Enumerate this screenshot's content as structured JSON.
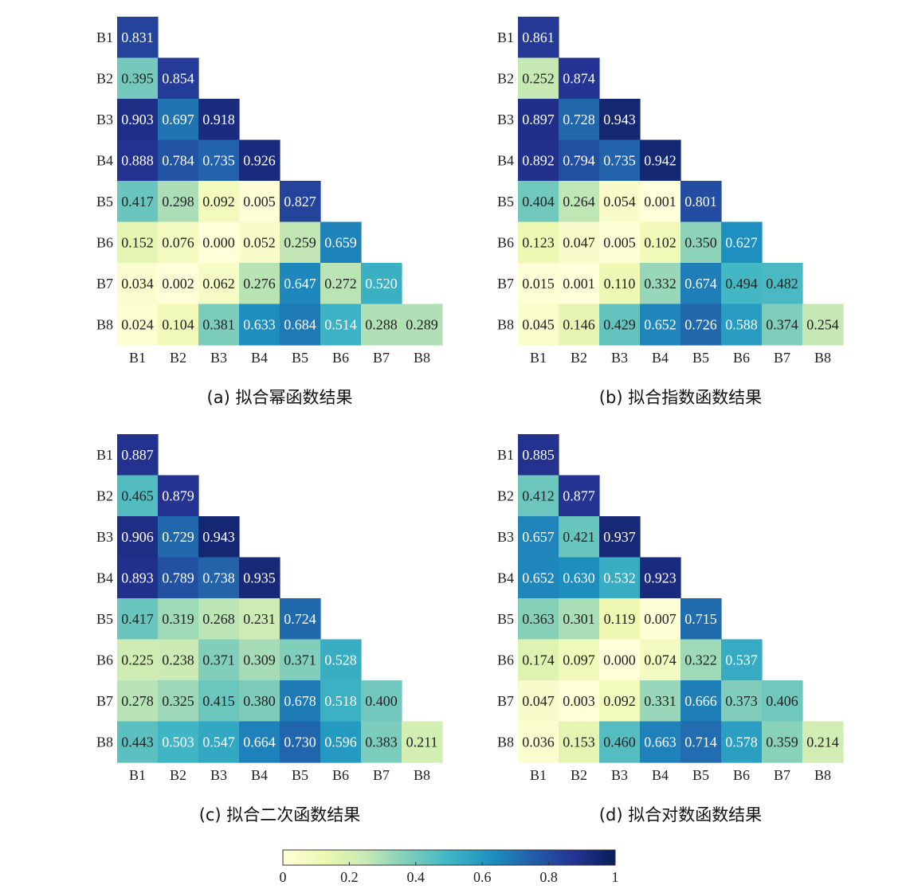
{
  "colors": {
    "colormap": [
      "#ffffd9",
      "#edf8b1",
      "#c7e9b4",
      "#7fcdbb",
      "#41b6c4",
      "#1d91c0",
      "#225ea8",
      "#253494",
      "#081d58"
    ],
    "text_dark": "#222222",
    "text_light": "#ffffff"
  },
  "chart_data": [
    {
      "type": "heatmap",
      "caption": "(a) 拟合幂函数结果",
      "row_labels": [
        "B1",
        "B2",
        "B3",
        "B4",
        "B5",
        "B6",
        "B7",
        "B8"
      ],
      "col_labels": [
        "B1",
        "B2",
        "B3",
        "B4",
        "B5",
        "B6",
        "B7",
        "B8"
      ],
      "values": [
        [
          "0.831"
        ],
        [
          "0.395",
          "0.854"
        ],
        [
          "0.903",
          "0.697",
          "0.918"
        ],
        [
          "0.888",
          "0.784",
          "0.735",
          "0.926"
        ],
        [
          "0.417",
          "0.298",
          "0.092",
          "0.005",
          "0.827"
        ],
        [
          "0.152",
          "0.076",
          "0.000",
          "0.052",
          "0.259",
          "0.659"
        ],
        [
          "0.034",
          "0.002",
          "0.062",
          "0.276",
          "0.647",
          "0.272",
          "0.520"
        ],
        [
          "0.024",
          "0.104",
          "0.381",
          "0.633",
          "0.684",
          "0.514",
          "0.288",
          "0.289"
        ]
      ]
    },
    {
      "type": "heatmap",
      "caption": "(b) 拟合指数函数结果",
      "row_labels": [
        "B1",
        "B2",
        "B3",
        "B4",
        "B5",
        "B6",
        "B7",
        "B8"
      ],
      "col_labels": [
        "B1",
        "B2",
        "B3",
        "B4",
        "B5",
        "B6",
        "B7",
        "B8"
      ],
      "values": [
        [
          "0.861"
        ],
        [
          "0.252",
          "0.874"
        ],
        [
          "0.897",
          "0.728",
          "0.943"
        ],
        [
          "0.892",
          "0.794",
          "0.735",
          "0.942"
        ],
        [
          "0.404",
          "0.264",
          "0.054",
          "0.001",
          "0.801"
        ],
        [
          "0.123",
          "0.047",
          "0.005",
          "0.102",
          "0.350",
          "0.627"
        ],
        [
          "0.015",
          "0.001",
          "0.110",
          "0.332",
          "0.674",
          "0.494",
          "0.482"
        ],
        [
          "0.045",
          "0.146",
          "0.429",
          "0.652",
          "0.726",
          "0.588",
          "0.374",
          "0.254"
        ]
      ]
    },
    {
      "type": "heatmap",
      "caption": "(c) 拟合二次函数结果",
      "row_labels": [
        "B1",
        "B2",
        "B3",
        "B4",
        "B5",
        "B6",
        "B7",
        "B8"
      ],
      "col_labels": [
        "B1",
        "B2",
        "B3",
        "B4",
        "B5",
        "B6",
        "B7",
        "B8"
      ],
      "values": [
        [
          "0.887"
        ],
        [
          "0.465",
          "0.879"
        ],
        [
          "0.906",
          "0.729",
          "0.943"
        ],
        [
          "0.893",
          "0.789",
          "0.738",
          "0.935"
        ],
        [
          "0.417",
          "0.319",
          "0.268",
          "0.231",
          "0.724"
        ],
        [
          "0.225",
          "0.238",
          "0.371",
          "0.309",
          "0.371",
          "0.528"
        ],
        [
          "0.278",
          "0.325",
          "0.415",
          "0.380",
          "0.678",
          "0.518",
          "0.400"
        ],
        [
          "0.443",
          "0.503",
          "0.547",
          "0.664",
          "0.730",
          "0.596",
          "0.383",
          "0.211"
        ]
      ]
    },
    {
      "type": "heatmap",
      "caption": "(d) 拟合对数函数结果",
      "row_labels": [
        "B1",
        "B2",
        "B3",
        "B4",
        "B5",
        "B6",
        "B7",
        "B8"
      ],
      "col_labels": [
        "B1",
        "B2",
        "B3",
        "B4",
        "B5",
        "B6",
        "B7",
        "B8"
      ],
      "values": [
        [
          "0.885"
        ],
        [
          "0.412",
          "0.877"
        ],
        [
          "0.657",
          "0.421",
          "0.937"
        ],
        [
          "0.652",
          "0.630",
          "0.532",
          "0.923"
        ],
        [
          "0.363",
          "0.301",
          "0.119",
          "0.007",
          "0.715"
        ],
        [
          "0.174",
          "0.097",
          "0.000",
          "0.074",
          "0.322",
          "0.537"
        ],
        [
          "0.047",
          "0.003",
          "0.092",
          "0.331",
          "0.666",
          "0.373",
          "0.406"
        ],
        [
          "0.036",
          "0.153",
          "0.460",
          "0.663",
          "0.714",
          "0.578",
          "0.359",
          "0.214"
        ]
      ]
    }
  ],
  "colorbar": {
    "range": [
      0,
      1
    ],
    "ticks": [
      "0",
      "0.2",
      "0.4",
      "0.6",
      "0.8",
      "1"
    ]
  }
}
